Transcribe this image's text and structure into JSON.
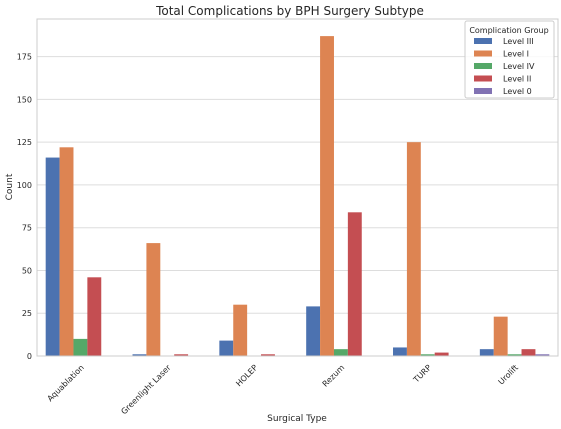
{
  "chart_data": {
    "type": "bar",
    "title": "Total Complications by BPH Surgery Subtype",
    "xlabel": "Surgical Type",
    "ylabel": "Count",
    "ylim": [
      0,
      197
    ],
    "yticks": [
      0,
      25,
      50,
      75,
      100,
      125,
      150,
      175
    ],
    "grid": true,
    "legend_title": "Complication Group",
    "legend_position": "top-right",
    "categories": [
      "Aquablation",
      "Greenlight Laser",
      "HOLEP",
      "Rezum",
      "TURP",
      "Urolift"
    ],
    "series": [
      {
        "name": "Level III",
        "color": "#4c72b0",
        "values": [
          116,
          1,
          9,
          29,
          5,
          4
        ]
      },
      {
        "name": "Level I",
        "color": "#dd8452",
        "values": [
          122,
          66,
          30,
          187,
          125,
          23
        ]
      },
      {
        "name": "Level IV",
        "color": "#55a868",
        "values": [
          10,
          0,
          0,
          4,
          1,
          1
        ]
      },
      {
        "name": "Level II",
        "color": "#c44e52",
        "values": [
          46,
          1,
          1,
          84,
          2,
          4
        ]
      },
      {
        "name": "Level 0",
        "color": "#8172b3",
        "values": [
          0,
          0,
          0,
          0,
          0,
          1
        ]
      }
    ]
  }
}
